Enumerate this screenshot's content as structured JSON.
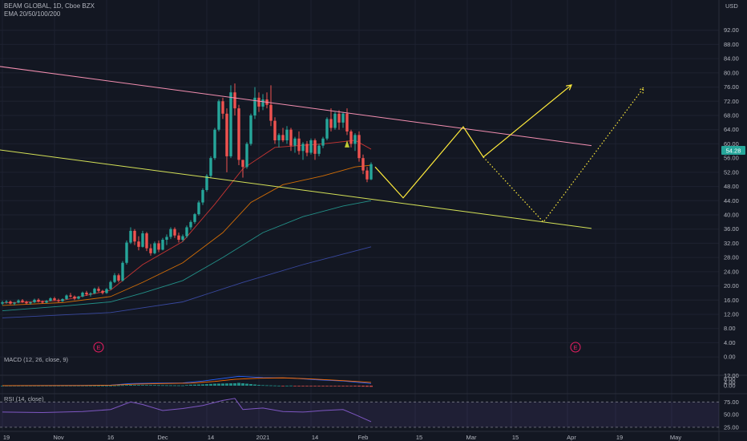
{
  "header": {
    "symbol_line": "BEAM GLOBAL, 1D, Cboe BZX",
    "ema_line": "EMA 20/50/100/200",
    "currency": "USD"
  },
  "price_badge": "54.28",
  "colors": {
    "up": "#26a69a",
    "down": "#ef5350",
    "ema20": "#e53935",
    "ema50": "#f57c00",
    "ema100": "#26a69a",
    "ema200": "#3f51b5",
    "channel_upper": "#f48fb1",
    "channel_lower": "#d4e157",
    "projection": "#ffeb3b"
  },
  "chart_data": {
    "type": "candlestick",
    "y_axis_ticks": [
      "92.00",
      "88.00",
      "84.00",
      "80.00",
      "76.00",
      "72.00",
      "68.00",
      "64.00",
      "60.00",
      "56.00",
      "52.00",
      "48.00",
      "44.00",
      "40.00",
      "36.00",
      "32.00",
      "28.00",
      "24.00",
      "20.00",
      "16.00",
      "12.00",
      "8.00",
      "4.00",
      "0.00"
    ],
    "x_axis_ticks": [
      "19",
      "Nov",
      "16",
      "Dec",
      "14",
      "2021",
      "14",
      "Feb",
      "15",
      "Mar",
      "15",
      "Apr",
      "19",
      "May"
    ],
    "ylim": [
      -2,
      96
    ],
    "ohlc": [
      [
        15.0,
        15.8,
        14.6,
        15.4
      ],
      [
        15.4,
        16.0,
        15.0,
        15.6
      ],
      [
        15.6,
        15.9,
        14.8,
        15.0
      ],
      [
        15.0,
        15.5,
        14.5,
        15.3
      ],
      [
        15.3,
        16.2,
        15.1,
        15.9
      ],
      [
        15.9,
        16.3,
        15.2,
        15.5
      ],
      [
        15.5,
        15.8,
        14.8,
        15.1
      ],
      [
        15.1,
        15.6,
        14.7,
        15.4
      ],
      [
        15.4,
        16.4,
        15.2,
        16.1
      ],
      [
        16.1,
        16.5,
        15.3,
        15.6
      ],
      [
        15.6,
        15.9,
        15.0,
        15.3
      ],
      [
        15.3,
        16.0,
        15.1,
        15.8
      ],
      [
        15.8,
        16.8,
        15.6,
        16.5
      ],
      [
        16.5,
        16.9,
        15.8,
        16.0
      ],
      [
        16.0,
        16.4,
        15.4,
        15.7
      ],
      [
        15.7,
        16.5,
        15.5,
        16.3
      ],
      [
        16.3,
        17.6,
        16.1,
        17.3
      ],
      [
        17.3,
        18.0,
        16.7,
        17.0
      ],
      [
        17.0,
        17.3,
        16.0,
        16.4
      ],
      [
        16.4,
        17.2,
        16.2,
        17.0
      ],
      [
        17.0,
        18.4,
        16.8,
        18.1
      ],
      [
        18.1,
        18.6,
        17.2,
        17.6
      ],
      [
        17.6,
        18.2,
        17.0,
        17.9
      ],
      [
        17.9,
        19.5,
        17.7,
        19.2
      ],
      [
        19.2,
        19.8,
        18.2,
        18.6
      ],
      [
        18.6,
        18.9,
        17.6,
        18.0
      ],
      [
        18.0,
        19.4,
        17.8,
        19.1
      ],
      [
        19.1,
        21.5,
        18.9,
        21.1
      ],
      [
        21.1,
        23.6,
        20.8,
        23.0
      ],
      [
        23.0,
        23.5,
        21.0,
        21.5
      ],
      [
        21.5,
        27.0,
        21.2,
        26.5
      ],
      [
        26.5,
        32.8,
        26.0,
        32.2
      ],
      [
        32.2,
        36.5,
        31.8,
        35.5
      ],
      [
        35.5,
        36.0,
        31.5,
        32.5
      ],
      [
        32.5,
        34.0,
        30.0,
        31.0
      ],
      [
        31.0,
        35.5,
        30.8,
        34.8
      ],
      [
        34.8,
        35.2,
        29.8,
        30.6
      ],
      [
        30.6,
        31.8,
        28.5,
        29.2
      ],
      [
        29.2,
        32.5,
        28.9,
        32.0
      ],
      [
        32.0,
        32.8,
        29.5,
        30.2
      ],
      [
        30.2,
        33.5,
        30.0,
        33.0
      ],
      [
        33.0,
        34.5,
        31.5,
        33.8
      ],
      [
        33.8,
        36.5,
        33.2,
        36.0
      ],
      [
        36.0,
        36.5,
        33.5,
        34.2
      ],
      [
        34.2,
        35.0,
        32.2,
        33.0
      ],
      [
        33.0,
        34.5,
        32.5,
        34.0
      ],
      [
        34.0,
        37.0,
        33.5,
        36.5
      ],
      [
        36.5,
        38.5,
        35.8,
        38.0
      ],
      [
        38.0,
        40.5,
        37.5,
        40.2
      ],
      [
        40.2,
        44.0,
        39.8,
        43.5
      ],
      [
        43.5,
        47.5,
        42.8,
        47.0
      ],
      [
        47.0,
        51.5,
        46.5,
        51.0
      ],
      [
        51.0,
        56.5,
        50.5,
        56.0
      ],
      [
        56.0,
        64.5,
        55.5,
        64.0
      ],
      [
        64.0,
        72.5,
        63.5,
        72.0
      ],
      [
        72.0,
        73.0,
        67.0,
        68.5
      ],
      [
        68.5,
        70.0,
        52.0,
        56.5
      ],
      [
        56.5,
        76.5,
        56.0,
        74.5
      ],
      [
        74.5,
        77.0,
        68.0,
        70.0
      ],
      [
        70.0,
        71.0,
        54.0,
        55.5
      ],
      [
        55.5,
        54.8,
        50.5,
        53.5
      ],
      [
        53.5,
        60.5,
        53.0,
        60.0
      ],
      [
        60.0,
        68.5,
        59.5,
        68.0
      ],
      [
        68.0,
        76.0,
        67.0,
        73.0
      ],
      [
        73.0,
        74.5,
        69.0,
        70.5
      ],
      [
        70.5,
        74.0,
        69.5,
        72.5
      ],
      [
        72.5,
        74.5,
        70.0,
        71.0
      ],
      [
        71.0,
        76.5,
        65.0,
        66.5
      ],
      [
        66.5,
        67.5,
        60.0,
        61.0
      ],
      [
        61.0,
        63.0,
        59.0,
        62.5
      ],
      [
        62.5,
        64.5,
        60.5,
        61.0
      ],
      [
        61.0,
        65.0,
        60.0,
        64.0
      ],
      [
        64.0,
        64.5,
        58.0,
        59.5
      ],
      [
        59.5,
        62.0,
        57.5,
        61.5
      ],
      [
        61.5,
        63.5,
        57.0,
        58.0
      ],
      [
        58.0,
        60.5,
        55.5,
        60.0
      ],
      [
        60.0,
        60.8,
        56.5,
        57.5
      ],
      [
        57.5,
        61.5,
        57.0,
        61.0
      ],
      [
        61.0,
        61.5,
        55.5,
        57.2
      ],
      [
        57.2,
        60.0,
        56.5,
        59.5
      ],
      [
        59.5,
        62.0,
        58.8,
        61.5
      ],
      [
        61.5,
        67.5,
        61.0,
        67.0
      ],
      [
        67.0,
        70.0,
        63.5,
        64.5
      ],
      [
        64.5,
        69.0,
        64.0,
        68.5
      ],
      [
        68.5,
        69.5,
        64.0,
        66.0
      ],
      [
        66.0,
        69.0,
        64.5,
        68.5
      ],
      [
        68.5,
        70.0,
        62.5,
        63.5
      ],
      [
        63.5,
        64.0,
        59.0,
        60.0
      ],
      [
        60.0,
        63.0,
        58.0,
        62.5
      ],
      [
        62.5,
        63.5,
        55.0,
        56.0
      ],
      [
        56.0,
        57.0,
        51.5,
        52.5
      ],
      [
        52.5,
        53.5,
        49.2,
        50.0
      ],
      [
        50.0,
        54.8,
        49.8,
        54.28
      ]
    ],
    "series": [
      {
        "name": "EMA 20",
        "color": "#e53935",
        "points": [
          [
            0,
            15.2
          ],
          [
            15,
            15.9
          ],
          [
            27,
            18.8
          ],
          [
            35,
            26.0
          ],
          [
            45,
            32.5
          ],
          [
            53,
            43.0
          ],
          [
            60,
            53.0
          ],
          [
            68,
            59.0
          ],
          [
            80,
            60.0
          ],
          [
            88,
            61.0
          ],
          [
            92,
            58.5
          ]
        ]
      },
      {
        "name": "EMA 50",
        "color": "#f57c00",
        "points": [
          [
            0,
            14.5
          ],
          [
            15,
            15.3
          ],
          [
            27,
            17.0
          ],
          [
            35,
            21.0
          ],
          [
            45,
            26.5
          ],
          [
            55,
            35.0
          ],
          [
            62,
            43.5
          ],
          [
            70,
            48.5
          ],
          [
            80,
            51.0
          ],
          [
            88,
            53.5
          ],
          [
            92,
            54.0
          ]
        ]
      },
      {
        "name": "EMA 100",
        "color": "#26a69a",
        "points": [
          [
            0,
            13.0
          ],
          [
            15,
            14.3
          ],
          [
            27,
            15.5
          ],
          [
            35,
            18.0
          ],
          [
            45,
            21.5
          ],
          [
            55,
            28.0
          ],
          [
            65,
            35.0
          ],
          [
            75,
            39.5
          ],
          [
            85,
            42.5
          ],
          [
            92,
            44.0
          ]
        ]
      },
      {
        "name": "EMA 200",
        "color": "#3f51b5",
        "points": [
          [
            0,
            11.0
          ],
          [
            27,
            12.5
          ],
          [
            45,
            15.5
          ],
          [
            60,
            21.0
          ],
          [
            75,
            26.0
          ],
          [
            92,
            31.0
          ]
        ]
      }
    ],
    "drawings": {
      "upper_channel": [
        [
          -2,
          82.0
        ],
        [
          147,
          59.5
        ]
      ],
      "lower_channel": [
        [
          -2,
          58.5
        ],
        [
          147,
          36.2
        ]
      ],
      "projection_solid": [
        [
          93,
          53.5
        ],
        [
          100,
          44.8
        ],
        [
          115,
          64.8
        ],
        [
          120,
          56.3
        ],
        [
          142,
          76.6
        ]
      ],
      "projection_dotted": [
        [
          120,
          56.3
        ],
        [
          135,
          38.0
        ],
        [
          160,
          75.8
        ]
      ]
    },
    "earnings_markers": [
      "E",
      "E"
    ],
    "macd": {
      "label": "MACD (12, 26, close, 9)",
      "ticks": [
        "12.00",
        "8.00",
        "4.00",
        "0.00"
      ],
      "ylim": [
        -2,
        13
      ],
      "macd_line": [
        [
          0,
          0.1
        ],
        [
          20,
          0.3
        ],
        [
          27,
          0.6
        ],
        [
          32,
          2.5
        ],
        [
          38,
          3.0
        ],
        [
          45,
          3.2
        ],
        [
          50,
          5.5
        ],
        [
          55,
          8.5
        ],
        [
          59,
          11.0
        ],
        [
          65,
          9.5
        ],
        [
          72,
          9.0
        ],
        [
          78,
          7.0
        ],
        [
          85,
          5.5
        ],
        [
          92,
          2.5
        ]
      ],
      "signal_line": [
        [
          0,
          0.1
        ],
        [
          20,
          0.2
        ],
        [
          27,
          0.5
        ],
        [
          33,
          1.8
        ],
        [
          40,
          2.5
        ],
        [
          47,
          3.0
        ],
        [
          53,
          5.0
        ],
        [
          58,
          7.5
        ],
        [
          64,
          8.8
        ],
        [
          70,
          9.2
        ],
        [
          77,
          8.0
        ],
        [
          85,
          6.0
        ],
        [
          92,
          3.8
        ]
      ]
    },
    "rsi": {
      "label": "RSI (14, close)",
      "ticks": [
        "75.00",
        "50.00",
        "25.00"
      ],
      "ylim": [
        20,
        85
      ],
      "line": [
        [
          0,
          55
        ],
        [
          10,
          54
        ],
        [
          20,
          56
        ],
        [
          27,
          60
        ],
        [
          32,
          75
        ],
        [
          35,
          70
        ],
        [
          40,
          58
        ],
        [
          45,
          62
        ],
        [
          50,
          68
        ],
        [
          55,
          78
        ],
        [
          58,
          82
        ],
        [
          60,
          60
        ],
        [
          65,
          63
        ],
        [
          70,
          56
        ],
        [
          75,
          55
        ],
        [
          80,
          58
        ],
        [
          85,
          60
        ],
        [
          88,
          50
        ],
        [
          92,
          36
        ]
      ]
    }
  }
}
